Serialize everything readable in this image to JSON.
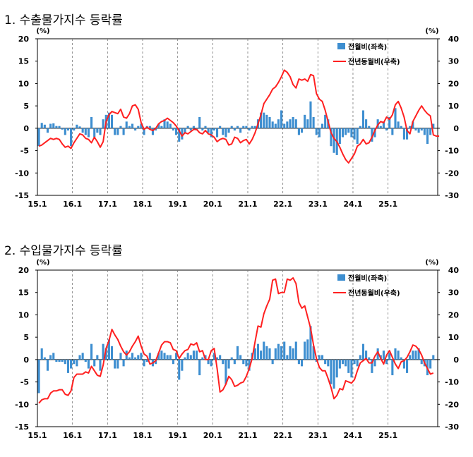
{
  "charts": [
    {
      "title": "1. 수출물가지수 등락률"
    },
    {
      "title": "2. 수입물가지수 등락률"
    }
  ],
  "chart_data": [
    {
      "type": "bar+line",
      "title": "1. 수출물가지수 등락률",
      "left_unit": "(%)",
      "right_unit": "(%)",
      "left_ylim": [
        -15,
        20
      ],
      "left_ticks": [
        20,
        15,
        10,
        5,
        0,
        -5,
        -10,
        -15
      ],
      "right_ylim": [
        -30,
        40
      ],
      "right_ticks": [
        40,
        30,
        20,
        10,
        0,
        -10,
        -20,
        -30
      ],
      "x_tick_labels": [
        "15.1",
        "16.1",
        "17.1",
        "18.1",
        "19.1",
        "20.1",
        "21.1",
        "22.1",
        "23.1",
        "24.1",
        "25.1"
      ],
      "start": "2015-01",
      "grid_vertical_dashed": true,
      "legend_position": "top-right",
      "series": [
        {
          "name": "전월비(좌축)",
          "kind": "bar",
          "axis": "left",
          "color": "#3d8ed0",
          "values": [
            -4.0,
            1.2,
            0.8,
            -1.0,
            1.0,
            1.1,
            0.5,
            0.5,
            -0.3,
            -1.5,
            -0.5,
            -4.0,
            -0.5,
            0.8,
            0.4,
            -1.0,
            -1.5,
            -2.0,
            2.5,
            -2.0,
            -1.0,
            -1.5,
            2.0,
            3.0,
            3.5,
            3.0,
            -1.5,
            -1.5,
            0.5,
            -1.5,
            1.5,
            0.5,
            1.0,
            -0.5,
            0.5,
            1.0,
            -1.5,
            0.5,
            0.5,
            -1.5,
            -0.5,
            1.0,
            0.5,
            2.0,
            1.5,
            1.0,
            -0.5,
            -1.5,
            -3.0,
            -2.5,
            -1.0,
            0.5,
            -0.5,
            0.5,
            -0.5,
            2.5,
            -0.5,
            0.5,
            -1.0,
            -2.0,
            -0.5,
            -2.0,
            0.5,
            -1.5,
            -2.0,
            -1.0,
            0.5,
            -0.5,
            0.5,
            -1.0,
            0.5,
            0.5,
            -0.5,
            0.5,
            0.5,
            2.0,
            3.5,
            3.5,
            3.0,
            2.5,
            1.5,
            1.0,
            2.0,
            4.0,
            1.0,
            1.5,
            2.0,
            2.5,
            2.0,
            -1.5,
            -1.0,
            3.0,
            2.0,
            6.0,
            2.5,
            -1.5,
            -2.0,
            1.0,
            3.0,
            2.0,
            -4.0,
            -5.5,
            -6.0,
            -3.5,
            -2.0,
            -1.5,
            -1.0,
            -2.0,
            -2.5,
            -3.5,
            0.5,
            4.0,
            2.0,
            0.5,
            -3.0,
            -2.0,
            2.0,
            0.5,
            1.5,
            -0.5,
            2.5,
            -1.5,
            4.5,
            1.5,
            0.5,
            -2.5,
            -2.5,
            0.5,
            1.5,
            -0.5,
            -1.0,
            -0.5,
            -1.5,
            -3.5,
            -1.5,
            1.0
          ]
        },
        {
          "name": "전년동월비(우축)",
          "kind": "line",
          "axis": "right",
          "color": "#ff2020",
          "values": [
            -8.0,
            -7.5,
            -6.5,
            -5.5,
            -4.5,
            -5.0,
            -4.5,
            -5.0,
            -7.0,
            -8.5,
            -8.0,
            -9.0,
            -6.5,
            -4.5,
            -2.5,
            -3.0,
            -4.5,
            -5.0,
            -6.5,
            -4.0,
            -6.0,
            -8.5,
            -6.0,
            3.0,
            6.0,
            7.5,
            7.0,
            6.5,
            8.5,
            5.0,
            4.5,
            6.5,
            10.0,
            10.5,
            8.5,
            2.5,
            -0.5,
            0.5,
            -0.5,
            -1.0,
            0.0,
            2.0,
            3.0,
            3.5,
            4.5,
            3.5,
            2.5,
            1.0,
            -1.0,
            -3.5,
            -2.0,
            -2.5,
            -1.5,
            -0.5,
            -0.5,
            -2.0,
            -2.5,
            -1.0,
            -2.5,
            -3.0,
            -4.0,
            -6.0,
            -5.0,
            -4.5,
            -5.0,
            -7.5,
            -7.0,
            -4.0,
            -4.5,
            -6.5,
            -5.5,
            -5.0,
            -7.0,
            -5.0,
            -2.0,
            2.0,
            6.0,
            11.0,
            13.0,
            15.0,
            17.5,
            18.5,
            20.5,
            23.0,
            26.0,
            25.0,
            23.0,
            19.5,
            18.0,
            22.0,
            21.5,
            22.0,
            21.0,
            24.0,
            23.5,
            15.5,
            13.0,
            12.0,
            8.0,
            3.0,
            -2.0,
            -4.5,
            -6.0,
            -8.5,
            -11.5,
            -14.0,
            -15.5,
            -13.5,
            -11.5,
            -8.0,
            -7.0,
            -5.0,
            -7.0,
            -6.5,
            -4.0,
            -1.0,
            1.5,
            3.0,
            2.5,
            5.0,
            4.0,
            6.0,
            10.5,
            12.0,
            9.0,
            5.0,
            -1.0,
            -2.5,
            3.0,
            5.5,
            8.0,
            10.0,
            8.0,
            6.5,
            5.5,
            -3.0,
            -3.5,
            -3.5
          ]
        }
      ]
    },
    {
      "type": "bar+line",
      "title": "2. 수입물가지수 등락률",
      "left_unit": "(%)",
      "right_unit": "(%)",
      "left_ylim": [
        -15,
        20
      ],
      "left_ticks": [
        20,
        15,
        10,
        5,
        0,
        -5,
        -10,
        -15
      ],
      "right_ylim": [
        -30,
        40
      ],
      "right_ticks": [
        40,
        30,
        20,
        10,
        0,
        -10,
        -20,
        -30
      ],
      "x_tick_labels": [
        "15.1",
        "16.1",
        "17.1",
        "18.1",
        "19.1",
        "20.1",
        "21.1",
        "22.1",
        "23.1",
        "24.1",
        "25.1"
      ],
      "start": "2015-01",
      "grid_vertical_dashed": true,
      "legend_position": "top-right",
      "series": [
        {
          "name": "전월비(좌축)",
          "kind": "bar",
          "axis": "left",
          "color": "#3d8ed0",
          "values": [
            -7.5,
            2.5,
            0.5,
            -2.5,
            1.0,
            1.5,
            -0.5,
            -0.5,
            -0.5,
            -1.0,
            -3.0,
            -2.0,
            -1.0,
            -1.5,
            1.0,
            1.5,
            -0.5,
            -2.0,
            3.5,
            -1.5,
            1.0,
            -2.5,
            3.5,
            2.5,
            4.5,
            3.0,
            -2.0,
            -2.0,
            1.5,
            -1.5,
            2.0,
            0.5,
            1.5,
            0.5,
            1.0,
            1.5,
            -1.5,
            -0.5,
            1.5,
            -1.5,
            -1.0,
            1.5,
            2.0,
            1.5,
            1.0,
            1.0,
            -1.0,
            1.5,
            -4.5,
            -2.5,
            0.5,
            1.5,
            1.0,
            2.0,
            2.0,
            -3.5,
            0.5,
            1.0,
            -1.0,
            -1.5,
            1.5,
            0.5,
            1.0,
            -1.0,
            -5.5,
            -2.0,
            0.5,
            -1.0,
            3.0,
            1.0,
            -1.0,
            -1.5,
            -2.5,
            1.5,
            2.5,
            3.5,
            2.0,
            4.0,
            3.0,
            2.5,
            -1.0,
            2.5,
            3.5,
            3.0,
            4.0,
            1.0,
            3.0,
            2.5,
            4.0,
            -1.0,
            -1.5,
            4.0,
            4.5,
            7.5,
            3.0,
            -0.5,
            1.0,
            1.0,
            -1.0,
            -1.5,
            -5.5,
            -6.5,
            -4.0,
            -2.0,
            -1.0,
            -1.5,
            -3.0,
            -4.0,
            -1.0,
            -1.5,
            1.0,
            3.5,
            2.0,
            0.5,
            -3.0,
            -1.5,
            2.5,
            1.0,
            2.0,
            -1.0,
            1.5,
            -3.5,
            2.5,
            2.0,
            0.5,
            -2.0,
            -3.0,
            1.0,
            2.0,
            2.0,
            2.5,
            -1.0,
            -1.5,
            -3.5,
            -2.0,
            1.0
          ]
        },
        {
          "name": "전년동월비(우축)",
          "kind": "line",
          "axis": "right",
          "color": "#ff2020",
          "values": [
            -19.5,
            -18.0,
            -17.5,
            -17.5,
            -15.0,
            -14.0,
            -14.0,
            -13.5,
            -13.5,
            -15.5,
            -16.0,
            -14.0,
            -8.0,
            -6.5,
            -6.5,
            -6.5,
            -5.5,
            -6.0,
            -3.0,
            -5.0,
            -7.0,
            -7.5,
            -2.5,
            5.0,
            8.5,
            13.5,
            11.0,
            9.0,
            6.0,
            3.5,
            2.0,
            3.5,
            6.0,
            8.0,
            10.5,
            6.0,
            2.5,
            1.5,
            -2.0,
            -1.5,
            -0.5,
            3.0,
            6.5,
            8.0,
            8.0,
            7.5,
            4.5,
            4.0,
            0.5,
            2.5,
            4.0,
            4.5,
            7.0,
            6.5,
            7.5,
            3.5,
            4.0,
            0.0,
            0.0,
            4.0,
            5.0,
            -4.0,
            -14.5,
            -13.5,
            -11.0,
            -7.5,
            -9.0,
            -12.0,
            -11.5,
            -10.5,
            -10.0,
            -7.5,
            -4.0,
            0.5,
            8.0,
            15.0,
            14.5,
            20.5,
            24.0,
            27.0,
            35.5,
            36.0,
            29.5,
            30.0,
            30.0,
            36.0,
            35.5,
            36.5,
            34.0,
            25.5,
            23.0,
            24.0,
            19.0,
            14.0,
            6.5,
            0.5,
            -3.5,
            -5.0,
            -5.0,
            -8.5,
            -12.5,
            -17.5,
            -16.0,
            -13.0,
            -13.5,
            -9.5,
            -10.0,
            -10.5,
            -9.0,
            -5.0,
            -1.5,
            -0.5,
            0.5,
            -1.5,
            -1.5,
            1.5,
            3.5,
            0.5,
            -2.0,
            2.0,
            4.0,
            1.0,
            -2.0,
            -4.0,
            -1.0,
            -0.5,
            1.0,
            3.5,
            6.5,
            6.0,
            4.5,
            2.0,
            -1.5,
            -4.0,
            -6.5,
            -6.0
          ]
        }
      ]
    }
  ]
}
